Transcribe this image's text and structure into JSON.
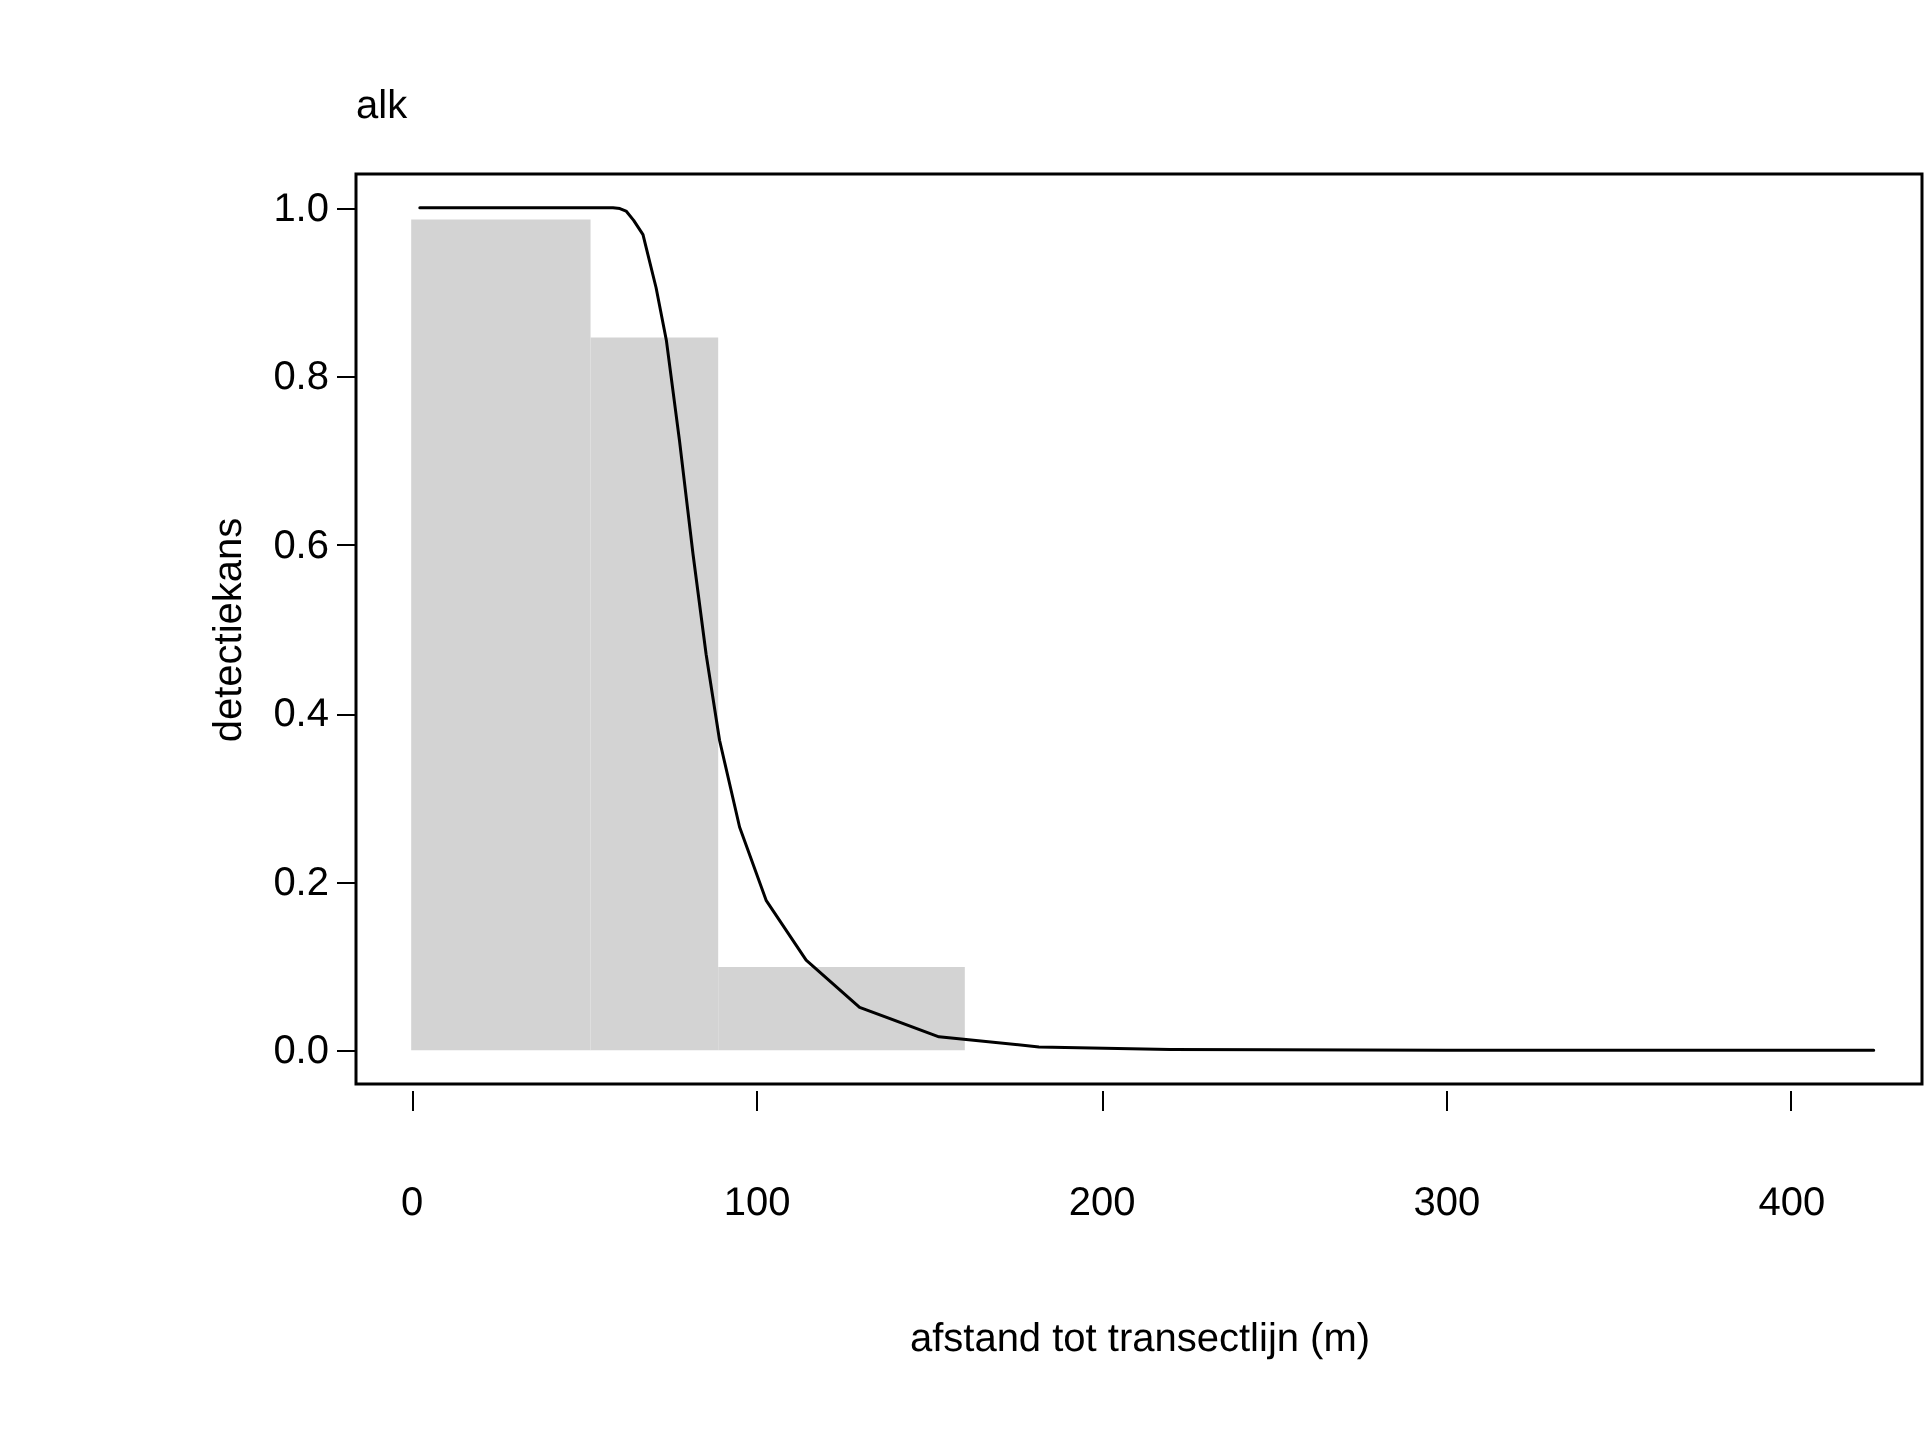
{
  "chart_data": {
    "type": "histogram",
    "title": "alk",
    "xlabel": "afstand tot transectlijn (m)",
    "ylabel": "detectiekans",
    "xlim": [
      -16,
      438
    ],
    "xticks": [
      0,
      100,
      200,
      300,
      400
    ],
    "ylim": [
      -0.04,
      1.04
    ],
    "yticks": [
      {
        "value": 0,
        "label": "0.0"
      },
      0.2,
      0.4,
      0.6,
      0.8,
      {
        "value": 1,
        "label": "1.0"
      }
    ],
    "grid": false,
    "series": [
      {
        "type": "histogram",
        "bins": [
          0,
          52,
          89,
          160.5
        ],
        "values": [
          0.986,
          0.846,
          0.099
        ],
        "color": "#d3d3d3"
      },
      {
        "type": "line",
        "color": "#000000",
        "x": [
          2.5,
          58.5,
          60.5,
          62.3,
          64.5,
          67.2,
          71.0,
          74.0,
          77.8,
          81.7,
          85.5,
          89.4,
          95.2,
          102.9,
          114.5,
          130,
          153,
          182,
          220,
          300,
          424
        ],
        "values": [
          1,
          1,
          0.999,
          0.996,
          0.985,
          0.968,
          0.905,
          0.842,
          0.723,
          0.589,
          0.47,
          0.368,
          0.265,
          0.178,
          0.107,
          0.051,
          0.016,
          0.004,
          0.001,
          0,
          0
        ]
      }
    ]
  }
}
